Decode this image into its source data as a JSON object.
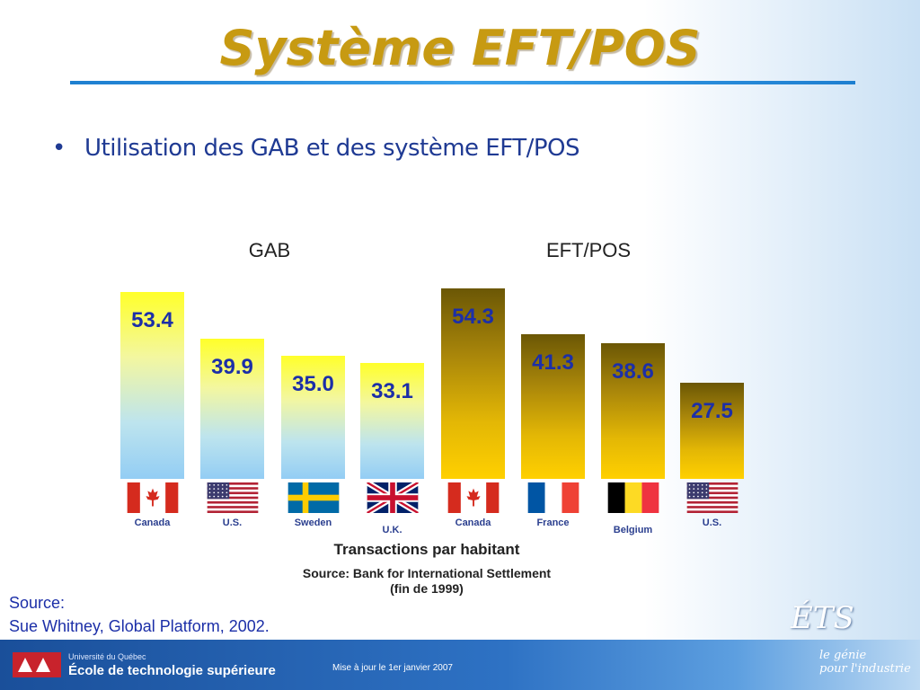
{
  "slide": {
    "title": "Système EFT/POS",
    "bullet": "Utilisation des GAB et des système EFT/POS"
  },
  "chart_data": {
    "type": "bar",
    "groups": [
      {
        "name": "GAB",
        "categories": [
          "Canada",
          "U.S.",
          "Sweden",
          "U.K."
        ],
        "values": [
          53.4,
          39.9,
          35.0,
          33.1
        ],
        "value_labels": [
          "53.4",
          "39.9",
          "35.0",
          "33.1"
        ]
      },
      {
        "name": "EFT/POS",
        "categories": [
          "Canada",
          "France",
          "Belgium",
          "U.S."
        ],
        "values": [
          54.3,
          41.3,
          38.6,
          27.5
        ],
        "value_labels": [
          "54.3",
          "41.3",
          "38.6",
          "27.5"
        ]
      }
    ],
    "xlabel": "Transactions par habitant",
    "source": "Source:  Bank for International Settlement",
    "period": "(fin de 1999)",
    "colors": {
      "GAB": "#ffff2a",
      "EFT/POS": "#a9860a"
    }
  },
  "source_block": {
    "label": "Source:",
    "text": "Sue Whitney, Global Platform, 2002."
  },
  "footer": {
    "university": "Université du Québec",
    "school": "École de technologie supérieure",
    "date": "Mise à jour le 1er janvier 2007",
    "brand": "ÉTS",
    "tagline_1": "le génie",
    "tagline_2": "pour l'industrie"
  }
}
